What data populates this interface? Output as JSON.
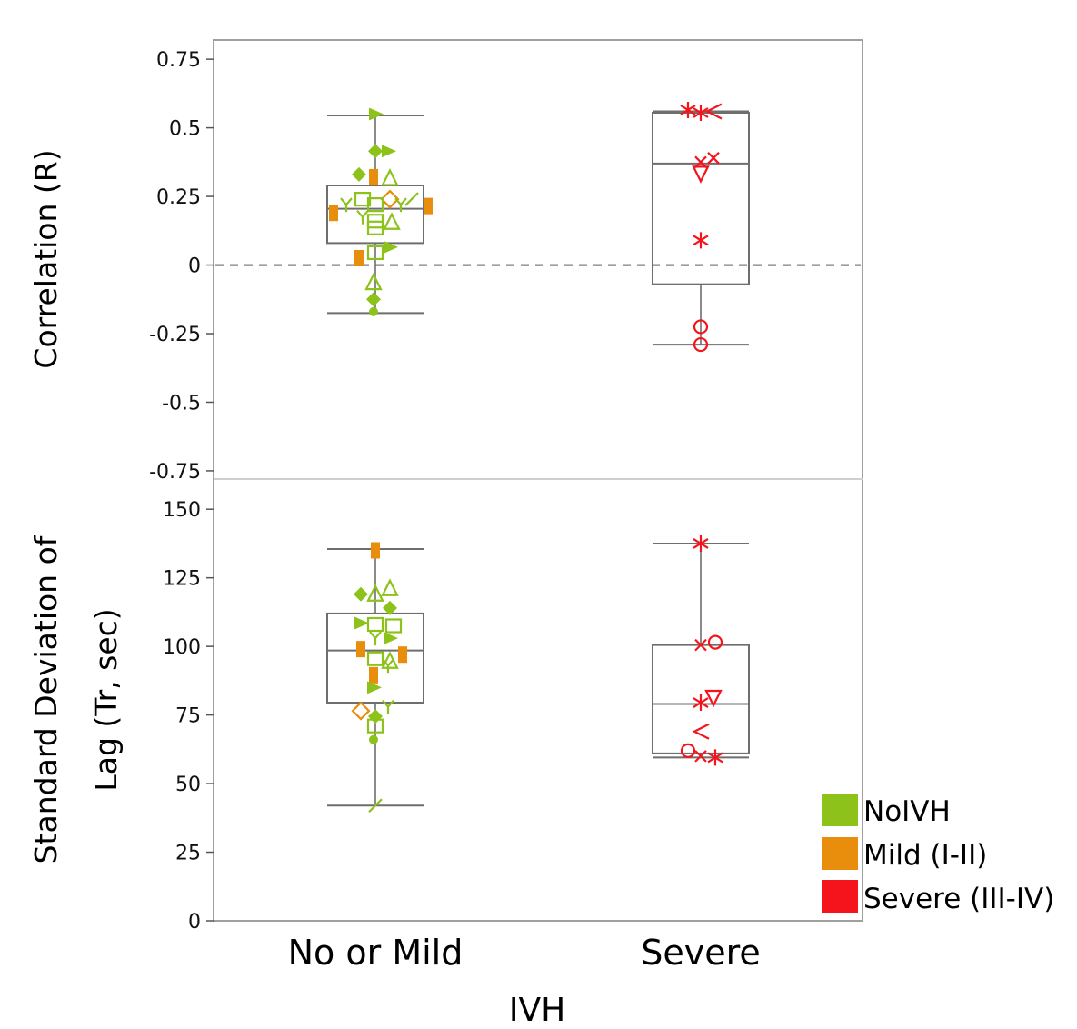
{
  "colors": {
    "noivh": "#8cc21a",
    "mild": "#e88d0c",
    "severe": "#f5141b",
    "box": "#6e6e6e",
    "frame": "#a0a0a0"
  },
  "legend": [
    {
      "label": "NoIVH",
      "color": "#8cc21a"
    },
    {
      "label": "Mild (I-II)",
      "color": "#e88d0c"
    },
    {
      "label": "Severe (III-IV)",
      "color": "#f5141b"
    }
  ],
  "chart_data": [
    {
      "type": "box",
      "ylabel": "Correlation (R)",
      "ylim": [
        -0.78,
        0.82
      ],
      "yticks": [
        "0.75",
        "0.5",
        "0.25",
        "0",
        "-0.25",
        "-0.5",
        "-0.75"
      ],
      "ytick_values": [
        0.75,
        0.5,
        0.25,
        0,
        -0.25,
        -0.5,
        -0.75
      ],
      "reference_line": 0,
      "categories": [
        "No or Mild",
        "Severe"
      ],
      "boxes": [
        {
          "category": "No or Mild",
          "min": -0.175,
          "q1": 0.08,
          "median": 0.205,
          "q3": 0.29,
          "max": 0.545
        },
        {
          "category": "Severe",
          "min": -0.29,
          "q1": -0.07,
          "median": 0.37,
          "q3": 0.555,
          "max": 0.56
        }
      ],
      "points": [
        {
          "cat": 0,
          "dx": 0,
          "y": 0.55,
          "grp": "noivh",
          "m": "tri-right"
        },
        {
          "cat": 0,
          "dx": 0,
          "y": 0.415,
          "grp": "noivh",
          "m": "diamond"
        },
        {
          "cat": 0,
          "dx": 14,
          "y": 0.415,
          "grp": "noivh",
          "m": "tri-right"
        },
        {
          "cat": 0,
          "dx": -18,
          "y": 0.33,
          "grp": "noivh",
          "m": "diamond"
        },
        {
          "cat": 0,
          "dx": -2,
          "y": 0.32,
          "grp": "mild",
          "m": "rect"
        },
        {
          "cat": 0,
          "dx": 16,
          "y": 0.315,
          "grp": "noivh",
          "m": "tri-up-open"
        },
        {
          "cat": 0,
          "dx": -14,
          "y": 0.24,
          "grp": "noivh",
          "m": "square-open"
        },
        {
          "cat": 0,
          "dx": 16,
          "y": 0.24,
          "grp": "mild",
          "m": "diamond-open"
        },
        {
          "cat": 0,
          "dx": 40,
          "y": 0.24,
          "grp": "noivh",
          "m": "slash"
        },
        {
          "cat": 0,
          "dx": -32,
          "y": 0.22,
          "grp": "noivh",
          "m": "y"
        },
        {
          "cat": 0,
          "dx": 0,
          "y": 0.22,
          "grp": "noivh",
          "m": "square-open"
        },
        {
          "cat": 0,
          "dx": 28,
          "y": 0.22,
          "grp": "noivh",
          "m": "y"
        },
        {
          "cat": 0,
          "dx": 58,
          "y": 0.215,
          "grp": "mild",
          "m": "rect"
        },
        {
          "cat": 0,
          "dx": -46,
          "y": 0.19,
          "grp": "mild",
          "m": "rect"
        },
        {
          "cat": 0,
          "dx": -14,
          "y": 0.175,
          "grp": "noivh",
          "m": "y"
        },
        {
          "cat": 0,
          "dx": 0,
          "y": 0.16,
          "grp": "noivh",
          "m": "square-open"
        },
        {
          "cat": 0,
          "dx": 18,
          "y": 0.155,
          "grp": "noivh",
          "m": "tri-up-open"
        },
        {
          "cat": 0,
          "dx": 0,
          "y": 0.135,
          "grp": "noivh",
          "m": "square-open"
        },
        {
          "cat": 0,
          "dx": 16,
          "y": 0.065,
          "grp": "noivh",
          "m": "tri-right"
        },
        {
          "cat": 0,
          "dx": 0,
          "y": 0.045,
          "grp": "noivh",
          "m": "square-open"
        },
        {
          "cat": 0,
          "dx": -18,
          "y": 0.025,
          "grp": "mild",
          "m": "rect"
        },
        {
          "cat": 0,
          "dx": -2,
          "y": -0.065,
          "grp": "noivh",
          "m": "tri-up-open"
        },
        {
          "cat": 0,
          "dx": -2,
          "y": -0.125,
          "grp": "noivh",
          "m": "diamond"
        },
        {
          "cat": 0,
          "dx": -2,
          "y": -0.17,
          "grp": "noivh",
          "m": "dot"
        },
        {
          "cat": 1,
          "dx": -14,
          "y": 0.565,
          "grp": "severe",
          "m": "star"
        },
        {
          "cat": 1,
          "dx": 0,
          "y": 0.555,
          "grp": "severe",
          "m": "star"
        },
        {
          "cat": 1,
          "dx": 14,
          "y": 0.56,
          "grp": "severe",
          "m": "lt"
        },
        {
          "cat": 1,
          "dx": 0,
          "y": 0.375,
          "grp": "severe",
          "m": "x"
        },
        {
          "cat": 1,
          "dx": 14,
          "y": 0.39,
          "grp": "severe",
          "m": "x"
        },
        {
          "cat": 1,
          "dx": 0,
          "y": 0.335,
          "grp": "severe",
          "m": "tri-down-open"
        },
        {
          "cat": 1,
          "dx": 0,
          "y": 0.09,
          "grp": "severe",
          "m": "star"
        },
        {
          "cat": 1,
          "dx": 0,
          "y": -0.225,
          "grp": "severe",
          "m": "circle-open"
        },
        {
          "cat": 1,
          "dx": 0,
          "y": -0.29,
          "grp": "severe",
          "m": "circle-open"
        }
      ]
    },
    {
      "type": "box",
      "ylabel": "Standard Deviation of Lag (Tr, sec)",
      "ylabel_lines": [
        "Standard Deviation of",
        "Lag (Tr, sec)"
      ],
      "ylim": [
        0,
        161
      ],
      "yticks": [
        "150",
        "125",
        "100",
        "75",
        "50",
        "25",
        "0"
      ],
      "ytick_values": [
        150,
        125,
        100,
        75,
        50,
        25,
        0
      ],
      "categories": [
        "No or Mild",
        "Severe"
      ],
      "boxes": [
        {
          "category": "No or Mild",
          "min": 42,
          "q1": 79.5,
          "median": 98.5,
          "q3": 112,
          "max": 135.5
        },
        {
          "category": "Severe",
          "min": 59.5,
          "q1": 61,
          "median": 79,
          "q3": 100.5,
          "max": 137.5
        }
      ],
      "points": [
        {
          "cat": 0,
          "dx": 0,
          "y": 135,
          "grp": "mild",
          "m": "rect"
        },
        {
          "cat": 0,
          "dx": 16,
          "y": 121,
          "grp": "noivh",
          "m": "tri-up-open"
        },
        {
          "cat": 0,
          "dx": -16,
          "y": 119,
          "grp": "noivh",
          "m": "diamond"
        },
        {
          "cat": 0,
          "dx": 0,
          "y": 119,
          "grp": "noivh",
          "m": "tri-up-open"
        },
        {
          "cat": 0,
          "dx": 16,
          "y": 114,
          "grp": "noivh",
          "m": "diamond"
        },
        {
          "cat": 0,
          "dx": -16,
          "y": 108.5,
          "grp": "noivh",
          "m": "tri-right"
        },
        {
          "cat": 0,
          "dx": 0,
          "y": 108,
          "grp": "noivh",
          "m": "square-open"
        },
        {
          "cat": 0,
          "dx": 20,
          "y": 107.5,
          "grp": "noivh",
          "m": "square-open"
        },
        {
          "cat": 0,
          "dx": 0,
          "y": 103,
          "grp": "noivh",
          "m": "y"
        },
        {
          "cat": 0,
          "dx": 16,
          "y": 103,
          "grp": "noivh",
          "m": "tri-right"
        },
        {
          "cat": 0,
          "dx": -16,
          "y": 99,
          "grp": "mild",
          "m": "rect"
        },
        {
          "cat": 0,
          "dx": 30,
          "y": 97,
          "grp": "mild",
          "m": "rect"
        },
        {
          "cat": 0,
          "dx": 0,
          "y": 95.5,
          "grp": "noivh",
          "m": "square-open"
        },
        {
          "cat": 0,
          "dx": 16,
          "y": 94.5,
          "grp": "noivh",
          "m": "tri-up-open"
        },
        {
          "cat": 0,
          "dx": 14,
          "y": 93,
          "grp": "noivh",
          "m": "y"
        },
        {
          "cat": 0,
          "dx": -2,
          "y": 89.5,
          "grp": "mild",
          "m": "rect"
        },
        {
          "cat": 0,
          "dx": -2,
          "y": 85,
          "grp": "noivh",
          "m": "tri-right"
        },
        {
          "cat": 0,
          "dx": 14,
          "y": 78,
          "grp": "noivh",
          "m": "y"
        },
        {
          "cat": 0,
          "dx": -16,
          "y": 76.5,
          "grp": "mild",
          "m": "diamond-open"
        },
        {
          "cat": 0,
          "dx": 0,
          "y": 74.5,
          "grp": "noivh",
          "m": "diamond"
        },
        {
          "cat": 0,
          "dx": 0,
          "y": 71,
          "grp": "noivh",
          "m": "square-open"
        },
        {
          "cat": 0,
          "dx": -2,
          "y": 66,
          "grp": "noivh",
          "m": "dot"
        },
        {
          "cat": 0,
          "dx": 0,
          "y": 42,
          "grp": "noivh",
          "m": "slash"
        },
        {
          "cat": 1,
          "dx": 0,
          "y": 137.5,
          "grp": "severe",
          "m": "star"
        },
        {
          "cat": 1,
          "dx": 0,
          "y": 100.5,
          "grp": "severe",
          "m": "x"
        },
        {
          "cat": 1,
          "dx": 16,
          "y": 101.5,
          "grp": "severe",
          "m": "circle-open"
        },
        {
          "cat": 1,
          "dx": 14,
          "y": 81.5,
          "grp": "severe",
          "m": "tri-down-open"
        },
        {
          "cat": 1,
          "dx": 0,
          "y": 79.5,
          "grp": "severe",
          "m": "star"
        },
        {
          "cat": 1,
          "dx": 0,
          "y": 69,
          "grp": "severe",
          "m": "lt"
        },
        {
          "cat": 1,
          "dx": -14,
          "y": 62,
          "grp": "severe",
          "m": "circle-open"
        },
        {
          "cat": 1,
          "dx": 0,
          "y": 60,
          "grp": "severe",
          "m": "x"
        },
        {
          "cat": 1,
          "dx": 16,
          "y": 59.5,
          "grp": "severe",
          "m": "star"
        }
      ]
    }
  ],
  "xaxis": {
    "categories": [
      "No or Mild",
      "Severe"
    ],
    "label": "IVH"
  }
}
